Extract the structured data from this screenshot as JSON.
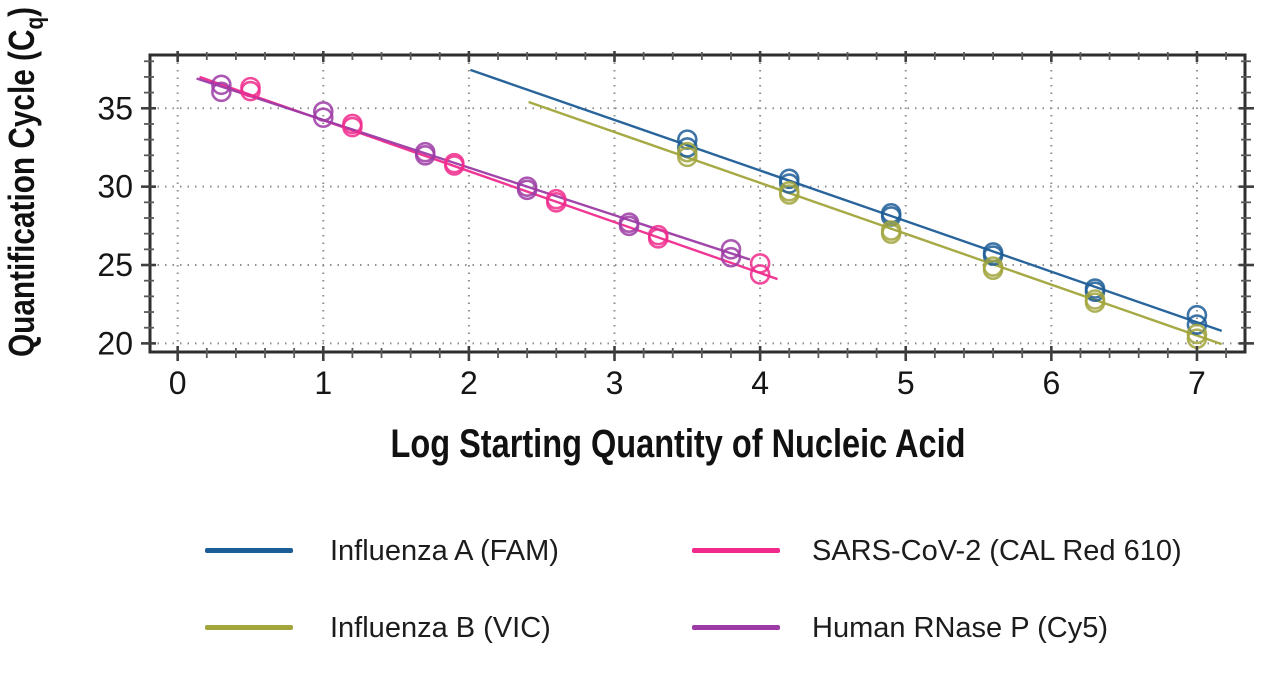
{
  "chart_data": {
    "type": "scatter",
    "title": "",
    "xlabel": "Log Starting Quantity of Nucleic Acid",
    "ylabel_text": "Quantification Cycle (C",
    "ylabel_subscript": "q",
    "ylabel_suffix": ")",
    "xlim": [
      -0.19,
      7.33
    ],
    "ylim": [
      19.45,
      38.4
    ],
    "xticks": [
      0,
      1,
      2,
      3,
      4,
      5,
      6,
      7
    ],
    "yticks": [
      20,
      25,
      30,
      35
    ],
    "x_minor_step": 0.2,
    "y_minor_step": 1,
    "grid": {
      "major": true,
      "minor": false,
      "style": "dotted",
      "color": "#8f8f8f"
    },
    "legend_position": "bottom",
    "series": [
      {
        "name": "Influenza A (FAM)",
        "color": "#1d5d96",
        "marker": "open-circle",
        "trendline": {
          "x1": 2.01,
          "y1": 37.45,
          "x2": 7.17,
          "y2": 20.8
        },
        "points": [
          [
            3.5,
            33.0
          ],
          [
            3.5,
            32.5
          ],
          [
            4.2,
            30.5
          ],
          [
            4.2,
            30.2
          ],
          [
            4.9,
            28.3
          ],
          [
            4.9,
            28.1
          ],
          [
            5.6,
            25.8
          ],
          [
            5.6,
            25.6
          ],
          [
            6.3,
            23.5
          ],
          [
            6.3,
            23.3
          ],
          [
            7.0,
            21.8
          ],
          [
            7.0,
            21.2
          ]
        ]
      },
      {
        "name": "Influenza B (VIC)",
        "color": "#a1a53b",
        "marker": "open-circle",
        "trendline": {
          "x1": 2.41,
          "y1": 35.4,
          "x2": 7.17,
          "y2": 19.95
        },
        "points": [
          [
            3.5,
            32.2
          ],
          [
            3.5,
            31.9
          ],
          [
            4.2,
            29.7
          ],
          [
            4.2,
            29.5
          ],
          [
            4.9,
            27.2
          ],
          [
            4.9,
            27.0
          ],
          [
            5.6,
            24.9
          ],
          [
            5.6,
            24.7
          ],
          [
            6.3,
            22.8
          ],
          [
            6.3,
            22.6
          ],
          [
            7.0,
            20.6
          ],
          [
            7.0,
            20.3
          ]
        ]
      },
      {
        "name": "SARS-CoV-2 (CAL Red 610)",
        "color": "#f02b8d",
        "marker": "open-circle",
        "trendline": {
          "x1": 0.15,
          "y1": 37.0,
          "x2": 4.12,
          "y2": 24.1
        },
        "points": [
          [
            0.5,
            36.35
          ],
          [
            0.5,
            36.1
          ],
          [
            1.2,
            34.0
          ],
          [
            1.2,
            33.8
          ],
          [
            1.9,
            31.5
          ],
          [
            1.9,
            31.35
          ],
          [
            2.6,
            29.2
          ],
          [
            2.6,
            29.0
          ],
          [
            3.3,
            26.9
          ],
          [
            3.3,
            26.7
          ],
          [
            4.0,
            25.1
          ],
          [
            4.0,
            24.4
          ]
        ]
      },
      {
        "name": "Human RNase P (Cy5)",
        "color": "#9c3ba6",
        "marker": "open-circle",
        "trendline": {
          "x1": 0.13,
          "y1": 36.9,
          "x2": 3.93,
          "y2": 25.35
        },
        "points": [
          [
            0.3,
            36.5
          ],
          [
            0.3,
            36.05
          ],
          [
            1.0,
            34.8
          ],
          [
            1.0,
            34.4
          ],
          [
            1.7,
            32.2
          ],
          [
            1.7,
            32.0
          ],
          [
            2.4,
            30.0
          ],
          [
            2.4,
            29.8
          ],
          [
            3.1,
            27.7
          ],
          [
            3.1,
            27.5
          ],
          [
            3.8,
            26.0
          ],
          [
            3.8,
            25.5
          ]
        ]
      }
    ]
  },
  "legend": {
    "entries": [
      {
        "label": "Influenza A (FAM)",
        "color": "#1d5d96"
      },
      {
        "label": "Influenza B (VIC)",
        "color": "#a1a53b"
      },
      {
        "label": "SARS-CoV-2 (CAL Red 610)",
        "color": "#f02b8d"
      },
      {
        "label": "Human RNase P (Cy5)",
        "color": "#9c3ba6"
      }
    ]
  }
}
